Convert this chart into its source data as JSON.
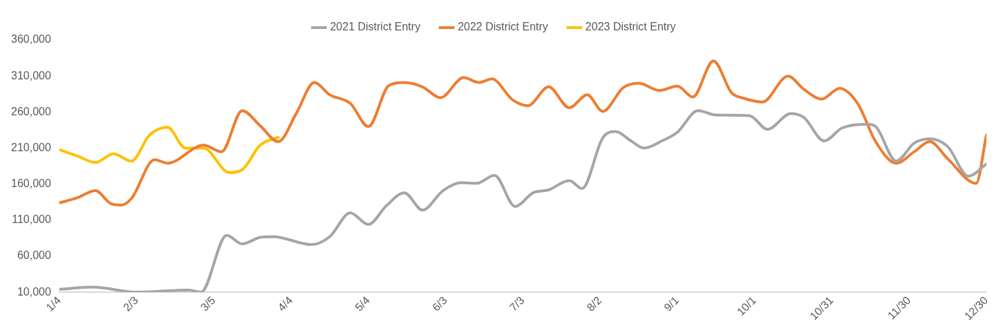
{
  "chart_data": {
    "type": "line",
    "legend": "top",
    "grid": false,
    "marker": "none",
    "line_style": "solid",
    "xlim": [
      "--01-04",
      "--12-30"
    ],
    "xticks": [
      {
        "value": "--01-04",
        "label": "1/4"
      },
      {
        "value": "--02-03",
        "label": "2/3"
      },
      {
        "value": "--03-05",
        "label": "3/5"
      },
      {
        "value": "--04-04",
        "label": "4/4"
      },
      {
        "value": "--05-04",
        "label": "5/4"
      },
      {
        "value": "--06-03",
        "label": "6/3"
      },
      {
        "value": "--07-03",
        "label": "7/3"
      },
      {
        "value": "--08-02",
        "label": "8/2"
      },
      {
        "value": "--09-01",
        "label": "9/1"
      },
      {
        "value": "--10-01",
        "label": "10/1"
      },
      {
        "value": "--10-31",
        "label": "10/31"
      },
      {
        "value": "--11-30",
        "label": "11/30"
      },
      {
        "value": "--12-30",
        "label": "12/30"
      }
    ],
    "ylim": [
      10000,
      360000
    ],
    "yticks": [
      {
        "value": 10000,
        "label": "10,000"
      },
      {
        "value": 60000,
        "label": "60,000"
      },
      {
        "value": 110000,
        "label": "110,000"
      },
      {
        "value": 160000,
        "label": "160,000"
      },
      {
        "value": 210000,
        "label": "210,000"
      },
      {
        "value": 260000,
        "label": "260,000"
      },
      {
        "value": 310000,
        "label": "310,000"
      },
      {
        "value": 360000,
        "label": "360,000"
      }
    ],
    "series": [
      {
        "name": "2021 District Entry",
        "color": "#a5a5a5",
        "x": [
          "--01-04",
          "--01-17",
          "--02-03",
          "--02-23",
          "--02-28",
          "--03-10",
          "--03-16",
          "--03-23",
          "--03-28",
          "--04-12",
          "--04-19",
          "--04-27",
          "--05-04",
          "--05-11",
          "--05-18",
          "--05-25",
          "--06-02",
          "--06-09",
          "--06-15",
          "--06-22",
          "--06-30",
          "--07-07",
          "--07-13",
          "--07-21",
          "--07-26",
          "--08-03",
          "--08-08",
          "--08-14",
          "--08-19",
          "--08-26",
          "--09-01",
          "--09-09",
          "--09-16",
          "--09-29",
          "--10-06",
          "--10-15",
          "--10-20",
          "--10-28",
          "--11-04",
          "--11-14",
          "--11-17",
          "--11-25",
          "--12-02",
          "--12-08",
          "--12-15",
          "--12-23",
          "--12-30"
        ],
        "values": [
          14000,
          17000,
          10000,
          13000,
          10000,
          89000,
          77000,
          86000,
          87000,
          76000,
          87000,
          120000,
          104000,
          130000,
          148000,
          124000,
          151000,
          162000,
          161000,
          172000,
          129000,
          148000,
          152000,
          165000,
          154000,
          224000,
          233000,
          220000,
          210000,
          220000,
          232000,
          262000,
          256000,
          255000,
          236000,
          258000,
          253000,
          220000,
          238000,
          243000,
          240000,
          192000,
          217000,
          223000,
          212000,
          171000,
          188000
        ]
      },
      {
        "name": "2022 District Entry",
        "color": "#ed7d31",
        "x": [
          "--01-04",
          "--01-11",
          "--01-18",
          "--01-24",
          "--01-28",
          "--02-01",
          "--02-10",
          "--02-15",
          "--03-01",
          "--03-08",
          "--03-16",
          "--03-23",
          "--03-30",
          "--04-06",
          "--04-13",
          "--04-19",
          "--04-27",
          "--05-04",
          "--05-12",
          "--05-18",
          "--05-25",
          "--06-01",
          "--06-10",
          "--06-16",
          "--06-21",
          "--06-29",
          "--07-05",
          "--07-13",
          "--07-21",
          "--07-28",
          "--08-03",
          "--08-11",
          "--08-17",
          "--08-25",
          "--09-01",
          "--09-07",
          "--09-15",
          "--09-22",
          "--09-27",
          "--10-04",
          "--10-14",
          "--10-20",
          "--10-27",
          "--11-03",
          "--11-10",
          "--11-17",
          "--11-25",
          "--12-02",
          "--12-08",
          "--12-15",
          "--12-26",
          "--12-30"
        ],
        "values": [
          134000,
          141000,
          151000,
          133000,
          131000,
          140000,
          194000,
          189000,
          214000,
          205000,
          262000,
          241000,
          219000,
          258000,
          301000,
          284000,
          272000,
          240000,
          297000,
          301000,
          295000,
          280000,
          308000,
          301000,
          306000,
          277000,
          269000,
          295000,
          266000,
          284000,
          261000,
          294000,
          300000,
          290000,
          296000,
          281000,
          331000,
          287000,
          279000,
          274000,
          310000,
          292000,
          278000,
          293000,
          272000,
          219000,
          189000,
          205000,
          219000,
          195000,
          161000,
          228000
        ]
      },
      {
        "name": "2023 District Entry",
        "color": "#ffc000",
        "x": [
          "--01-04",
          "--01-11",
          "--01-18",
          "--01-25",
          "--02-01",
          "--02-08",
          "--02-15",
          "--02-22",
          "--03-01",
          "--03-11",
          "--03-16",
          "--03-23",
          "--03-30"
        ],
        "values": [
          208000,
          199000,
          190000,
          202000,
          192000,
          228000,
          239000,
          210000,
          210000,
          176000,
          180000,
          214000,
          225000
        ]
      }
    ]
  }
}
